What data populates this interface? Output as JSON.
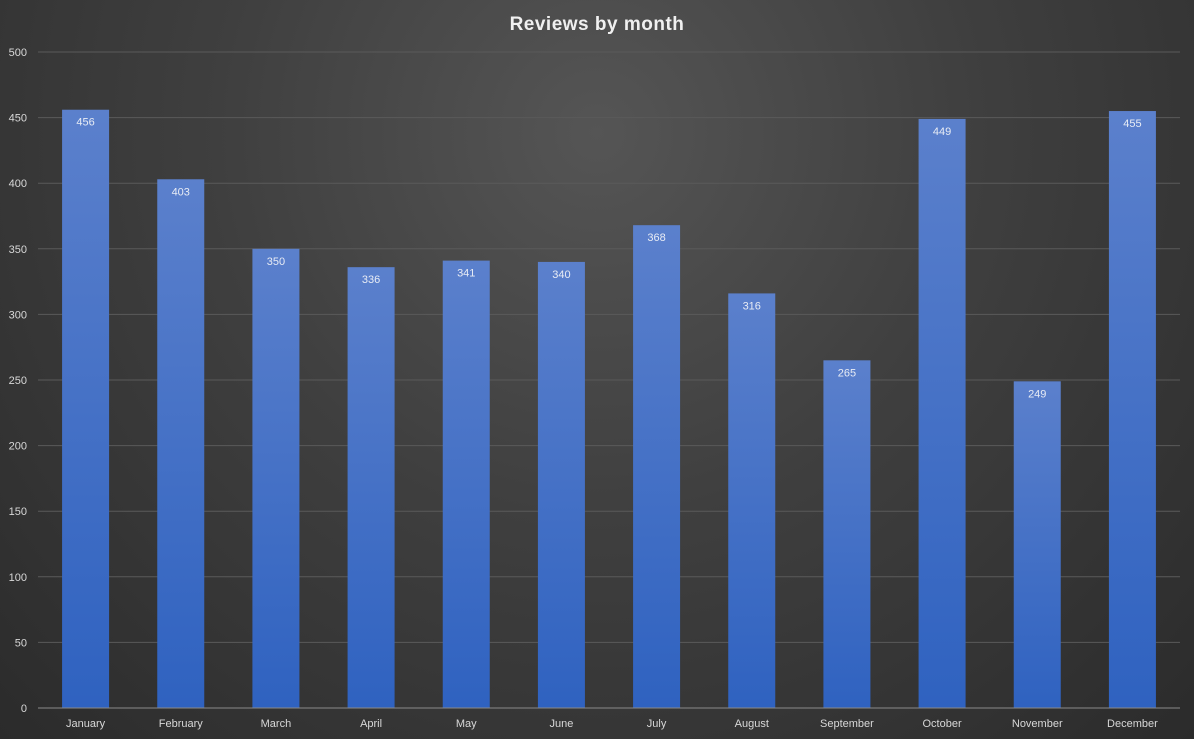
{
  "chart_data": {
    "type": "bar",
    "title": "Reviews by month",
    "xlabel": "",
    "ylabel": "",
    "categories": [
      "January",
      "February",
      "March",
      "April",
      "May",
      "June",
      "July",
      "August",
      "September",
      "October",
      "November",
      "December"
    ],
    "series": [
      {
        "values": [
          456,
          403,
          350,
          336,
          341,
          340,
          368,
          316,
          265,
          449,
          249,
          455
        ]
      }
    ],
    "ylim": [
      0,
      500
    ],
    "yticks": [
      0,
      50,
      100,
      150,
      200,
      250,
      300,
      350,
      400,
      450,
      500
    ],
    "grid": true,
    "legend": "none",
    "data_labels": "inside-end",
    "colors": {
      "bar_top": "#5b80cc",
      "bar_bottom": "#2f62c0",
      "background": "#404040"
    }
  }
}
